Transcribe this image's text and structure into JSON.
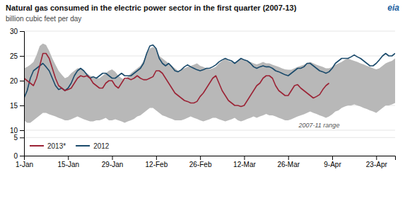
{
  "chart_data": [
    {
      "type": "line",
      "title": "Natural gas consumed in the electric power sector in the first quarter (2007-13)",
      "subtitle": "billion cubic feet per day",
      "annotations": [
        "eia"
      ],
      "categories": [
        "1-Jan",
        null,
        null,
        null,
        null,
        null,
        null,
        null,
        null,
        null,
        null,
        null,
        null,
        null,
        "15-Jan",
        null,
        null,
        null,
        null,
        null,
        null,
        null,
        null,
        null,
        null,
        null,
        null,
        null,
        "29-Jan",
        null,
        null,
        null,
        null,
        null,
        null,
        null,
        null,
        null,
        null,
        null,
        null,
        null,
        "12-Feb",
        null,
        null,
        null,
        null,
        null,
        null,
        null,
        null,
        null,
        null,
        null,
        null,
        null,
        "26-Feb",
        null,
        null,
        null,
        null,
        null,
        null,
        null,
        null,
        null,
        null,
        null,
        null,
        null,
        "12-Mar",
        null,
        null,
        null,
        null,
        null,
        null,
        null,
        null,
        null,
        null,
        null,
        null,
        null,
        "26-Mar",
        null,
        null,
        null,
        null,
        null,
        null,
        null,
        null,
        null,
        null,
        null,
        null,
        null,
        "9-Apr",
        null,
        null,
        null,
        null,
        null,
        null,
        null,
        null,
        null,
        null,
        null,
        null,
        null,
        "23-Apr",
        null,
        null,
        null,
        null,
        null,
        null
      ],
      "series": [
        {
          "name": "2007-11 range",
          "type": "area",
          "color": "#b8b8b8",
          "values": [
            22.5,
            22.8,
            23.2,
            23.8,
            25.2,
            27.0,
            27.5,
            27.2,
            26.0,
            24.5,
            23.2,
            22.0,
            21.2,
            20.5,
            20.8,
            21.5,
            22.0,
            22.5,
            22.5,
            22.0,
            21.5,
            21.0,
            20.8,
            20.5,
            20.5,
            21.0,
            21.5,
            22.0,
            22.3,
            21.8,
            21.0,
            20.5,
            20.2,
            20.8,
            21.5,
            22.0,
            22.5,
            23.0,
            24.0,
            25.5,
            26.5,
            26.8,
            26.5,
            25.0,
            24.5,
            24.0,
            23.5,
            23.0,
            22.5,
            22.0,
            22.2,
            22.5,
            22.8,
            23.0,
            23.2,
            23.5,
            23.0,
            22.8,
            22.5,
            22.3,
            22.5,
            22.8,
            23.5,
            24.0,
            24.5,
            24.0,
            23.8,
            23.5,
            24.0,
            24.5,
            24.3,
            24.0,
            23.8,
            23.5,
            23.3,
            23.5,
            23.8,
            23.5,
            23.5,
            23.2,
            23.0,
            22.8,
            22.5,
            22.3,
            22.2,
            22.2,
            22.5,
            22.8,
            23.0,
            23.2,
            23.5,
            23.8,
            23.5,
            23.2,
            23.0,
            22.8,
            22.5,
            22.5,
            22.8,
            23.2,
            23.5,
            23.8,
            24.2,
            24.5,
            24.2,
            24.0,
            23.8,
            23.5,
            23.3,
            23.0,
            22.8,
            22.5,
            22.3,
            22.5,
            23.0,
            23.5,
            23.8,
            24.0,
            24.5
          ],
          "lower": [
            12.0,
            11.5,
            11.5,
            12.0,
            12.5,
            13.0,
            13.5,
            13.5,
            13.2,
            13.0,
            12.8,
            12.5,
            12.3,
            12.0,
            12.0,
            12.2,
            12.5,
            12.8,
            12.5,
            12.2,
            12.0,
            11.8,
            11.8,
            12.0,
            12.0,
            12.2,
            12.5,
            12.0,
            12.0,
            12.2,
            12.0,
            11.8,
            11.5,
            11.8,
            12.0,
            12.3,
            12.8,
            13.0,
            13.5,
            14.0,
            14.5,
            14.5,
            14.0,
            13.5,
            13.0,
            12.8,
            12.5,
            12.3,
            12.0,
            12.0,
            12.0,
            12.2,
            12.5,
            12.8,
            12.5,
            12.3,
            12.0,
            11.8,
            12.0,
            12.2,
            12.5,
            12.5,
            12.2,
            12.0,
            11.8,
            12.0,
            12.2,
            12.5,
            12.0,
            11.8,
            12.0,
            12.3,
            12.5,
            12.8,
            12.5,
            12.8,
            13.0,
            13.3,
            13.0,
            13.0,
            12.8,
            12.5,
            12.3,
            12.0,
            12.0,
            12.2,
            12.5,
            12.8,
            13.0,
            13.2,
            13.5,
            13.8,
            13.5,
            13.3,
            13.0,
            12.8,
            12.5,
            12.8,
            13.2,
            13.8,
            14.0,
            14.5,
            14.8,
            15.0,
            15.0,
            15.2,
            15.0,
            14.8,
            14.5,
            14.3,
            14.0,
            13.8,
            13.5,
            14.0,
            14.5,
            15.0,
            15.0,
            15.2,
            15.5
          ]
        },
        {
          "name": "2012",
          "type": "line",
          "color": "#1a4a6b",
          "values": [
            16.5,
            18.0,
            20.5,
            22.0,
            22.5,
            23.0,
            23.5,
            22.8,
            22.0,
            20.5,
            19.0,
            18.2,
            18.5,
            18.0,
            18.5,
            19.5,
            21.0,
            22.0,
            22.5,
            22.0,
            21.2,
            20.5,
            20.8,
            20.5,
            21.0,
            21.5,
            21.5,
            21.0,
            20.5,
            20.5,
            21.0,
            21.5,
            21.0,
            21.0,
            21.0,
            21.5,
            22.0,
            22.5,
            23.5,
            25.5,
            27.0,
            27.2,
            26.5,
            24.5,
            23.5,
            23.0,
            23.5,
            22.8,
            22.0,
            21.8,
            22.2,
            22.8,
            23.2,
            22.8,
            22.5,
            22.2,
            22.0,
            22.2,
            22.5,
            22.5,
            22.8,
            23.2,
            23.8,
            24.2,
            24.5,
            24.2,
            24.0,
            23.5,
            24.0,
            24.5,
            24.2,
            24.0,
            23.5,
            22.8,
            22.5,
            22.8,
            23.0,
            22.8,
            22.8,
            22.5,
            22.0,
            21.8,
            21.5,
            21.2,
            21.0,
            21.5,
            22.0,
            22.5,
            22.5,
            22.8,
            23.5,
            23.5,
            23.0,
            22.5,
            22.0,
            21.8,
            21.5,
            21.8,
            22.5,
            23.5,
            24.0,
            24.5,
            24.5,
            24.5,
            24.8,
            25.2,
            24.8,
            24.5,
            24.0,
            23.5,
            23.0,
            23.0,
            23.5,
            24.2,
            25.0,
            25.5,
            25.0,
            25.0,
            25.5
          ]
        },
        {
          "name": "2013*",
          "type": "line",
          "color": "#9b2335",
          "values": [
            20.5,
            20.0,
            19.5,
            19.0,
            20.5,
            23.0,
            25.5,
            25.5,
            24.5,
            22.5,
            20.5,
            19.0,
            18.5,
            18.0,
            18.2,
            18.5,
            19.5,
            20.5,
            21.0,
            20.8,
            21.0,
            20.5,
            19.5,
            19.0,
            18.5,
            18.5,
            19.5,
            20.0,
            20.0,
            19.0,
            18.5,
            19.5,
            20.5,
            20.5,
            20.2,
            20.5,
            21.0,
            20.5,
            20.2,
            20.2,
            20.5,
            20.8,
            22.0,
            22.0,
            21.5,
            20.5,
            19.5,
            18.5,
            17.5,
            17.0,
            16.5,
            16.0,
            15.8,
            15.5,
            15.5,
            15.8,
            16.8,
            17.5,
            18.5,
            19.5,
            20.5,
            21.0,
            19.5,
            18.0,
            17.0,
            16.0,
            15.5,
            15.0,
            15.0,
            14.8,
            15.0,
            16.0,
            17.0,
            18.0,
            19.0,
            19.5,
            20.5,
            21.0,
            21.0,
            20.5,
            19.0,
            18.0,
            17.5,
            17.0,
            17.0,
            18.0,
            19.0,
            19.2,
            18.5,
            18.0,
            17.5,
            17.0,
            16.5,
            16.8,
            17.2,
            18.2,
            19.0,
            19.5,
            null,
            null,
            null,
            null,
            null,
            null,
            null,
            null,
            null,
            null,
            null,
            null,
            null,
            null,
            null,
            null,
            null,
            null,
            null,
            null,
            null
          ]
        }
      ],
      "ylim": [
        10,
        30
      ],
      "yticks": [
        10,
        15,
        20,
        25,
        30
      ],
      "grid": true,
      "legend": "lower left",
      "tick_labels": "y"
    },
    {
      "type": "line",
      "categories": [
        "1-Jan",
        null,
        null,
        null,
        null,
        null,
        null,
        null,
        null,
        null,
        null,
        null,
        null,
        null,
        "15-Jan",
        null,
        null,
        null,
        null,
        null,
        null,
        null,
        null,
        null,
        null,
        null,
        null,
        null,
        "29-Jan",
        null,
        null,
        null,
        null,
        null,
        null,
        null,
        null,
        null,
        null,
        null,
        null,
        null,
        "12-Feb",
        null,
        null,
        null,
        null,
        null,
        null,
        null,
        null,
        null,
        null,
        null,
        null,
        null,
        "26-Feb",
        null,
        null,
        null,
        null,
        null,
        null,
        null,
        null,
        null,
        null,
        null,
        null,
        null,
        "12-Mar",
        null,
        null,
        null,
        null,
        null,
        null,
        null,
        null,
        null,
        null,
        null,
        null,
        null,
        "26-Mar",
        null,
        null,
        null,
        null,
        null,
        null,
        null,
        null,
        null,
        null,
        null,
        null,
        null,
        "9-Apr",
        null,
        null,
        null,
        null,
        null,
        null,
        null,
        null,
        null,
        null,
        null,
        null,
        null,
        "23-Apr",
        null,
        null,
        null,
        null,
        null,
        null
      ],
      "ylim": [
        0,
        7
      ],
      "yticks": [
        0,
        5
      ],
      "grid": true
    }
  ]
}
